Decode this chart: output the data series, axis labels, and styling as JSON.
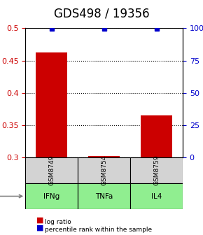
{
  "title": "GDS498 / 19356",
  "samples": [
    "GSM8749",
    "GSM8754",
    "GSM8759"
  ],
  "agents": [
    "IFNg",
    "TNFa",
    "IL4"
  ],
  "log_ratios": [
    0.463,
    0.302,
    0.365
  ],
  "percentile_ranks": [
    99.5,
    99.5,
    99.5
  ],
  "ylim_left": [
    0.3,
    0.5
  ],
  "ylim_right": [
    0,
    100
  ],
  "yticks_left": [
    0.3,
    0.35,
    0.4,
    0.45,
    0.5
  ],
  "yticks_right": [
    0,
    25,
    50,
    75,
    100
  ],
  "ytick_labels_left": [
    "0.3",
    "0.35",
    "0.4",
    "0.45",
    "0.5"
  ],
  "ytick_labels_right": [
    "0",
    "25",
    "50",
    "75",
    "100%"
  ],
  "bar_color": "#cc0000",
  "percentile_color": "#0000cc",
  "agent_bg_color": "#90ee90",
  "sample_bg_color": "#d3d3d3",
  "title_fontsize": 12,
  "tick_fontsize": 8,
  "label_fontsize": 8,
  "bar_width": 0.6,
  "x_positions": [
    0,
    1,
    2
  ]
}
